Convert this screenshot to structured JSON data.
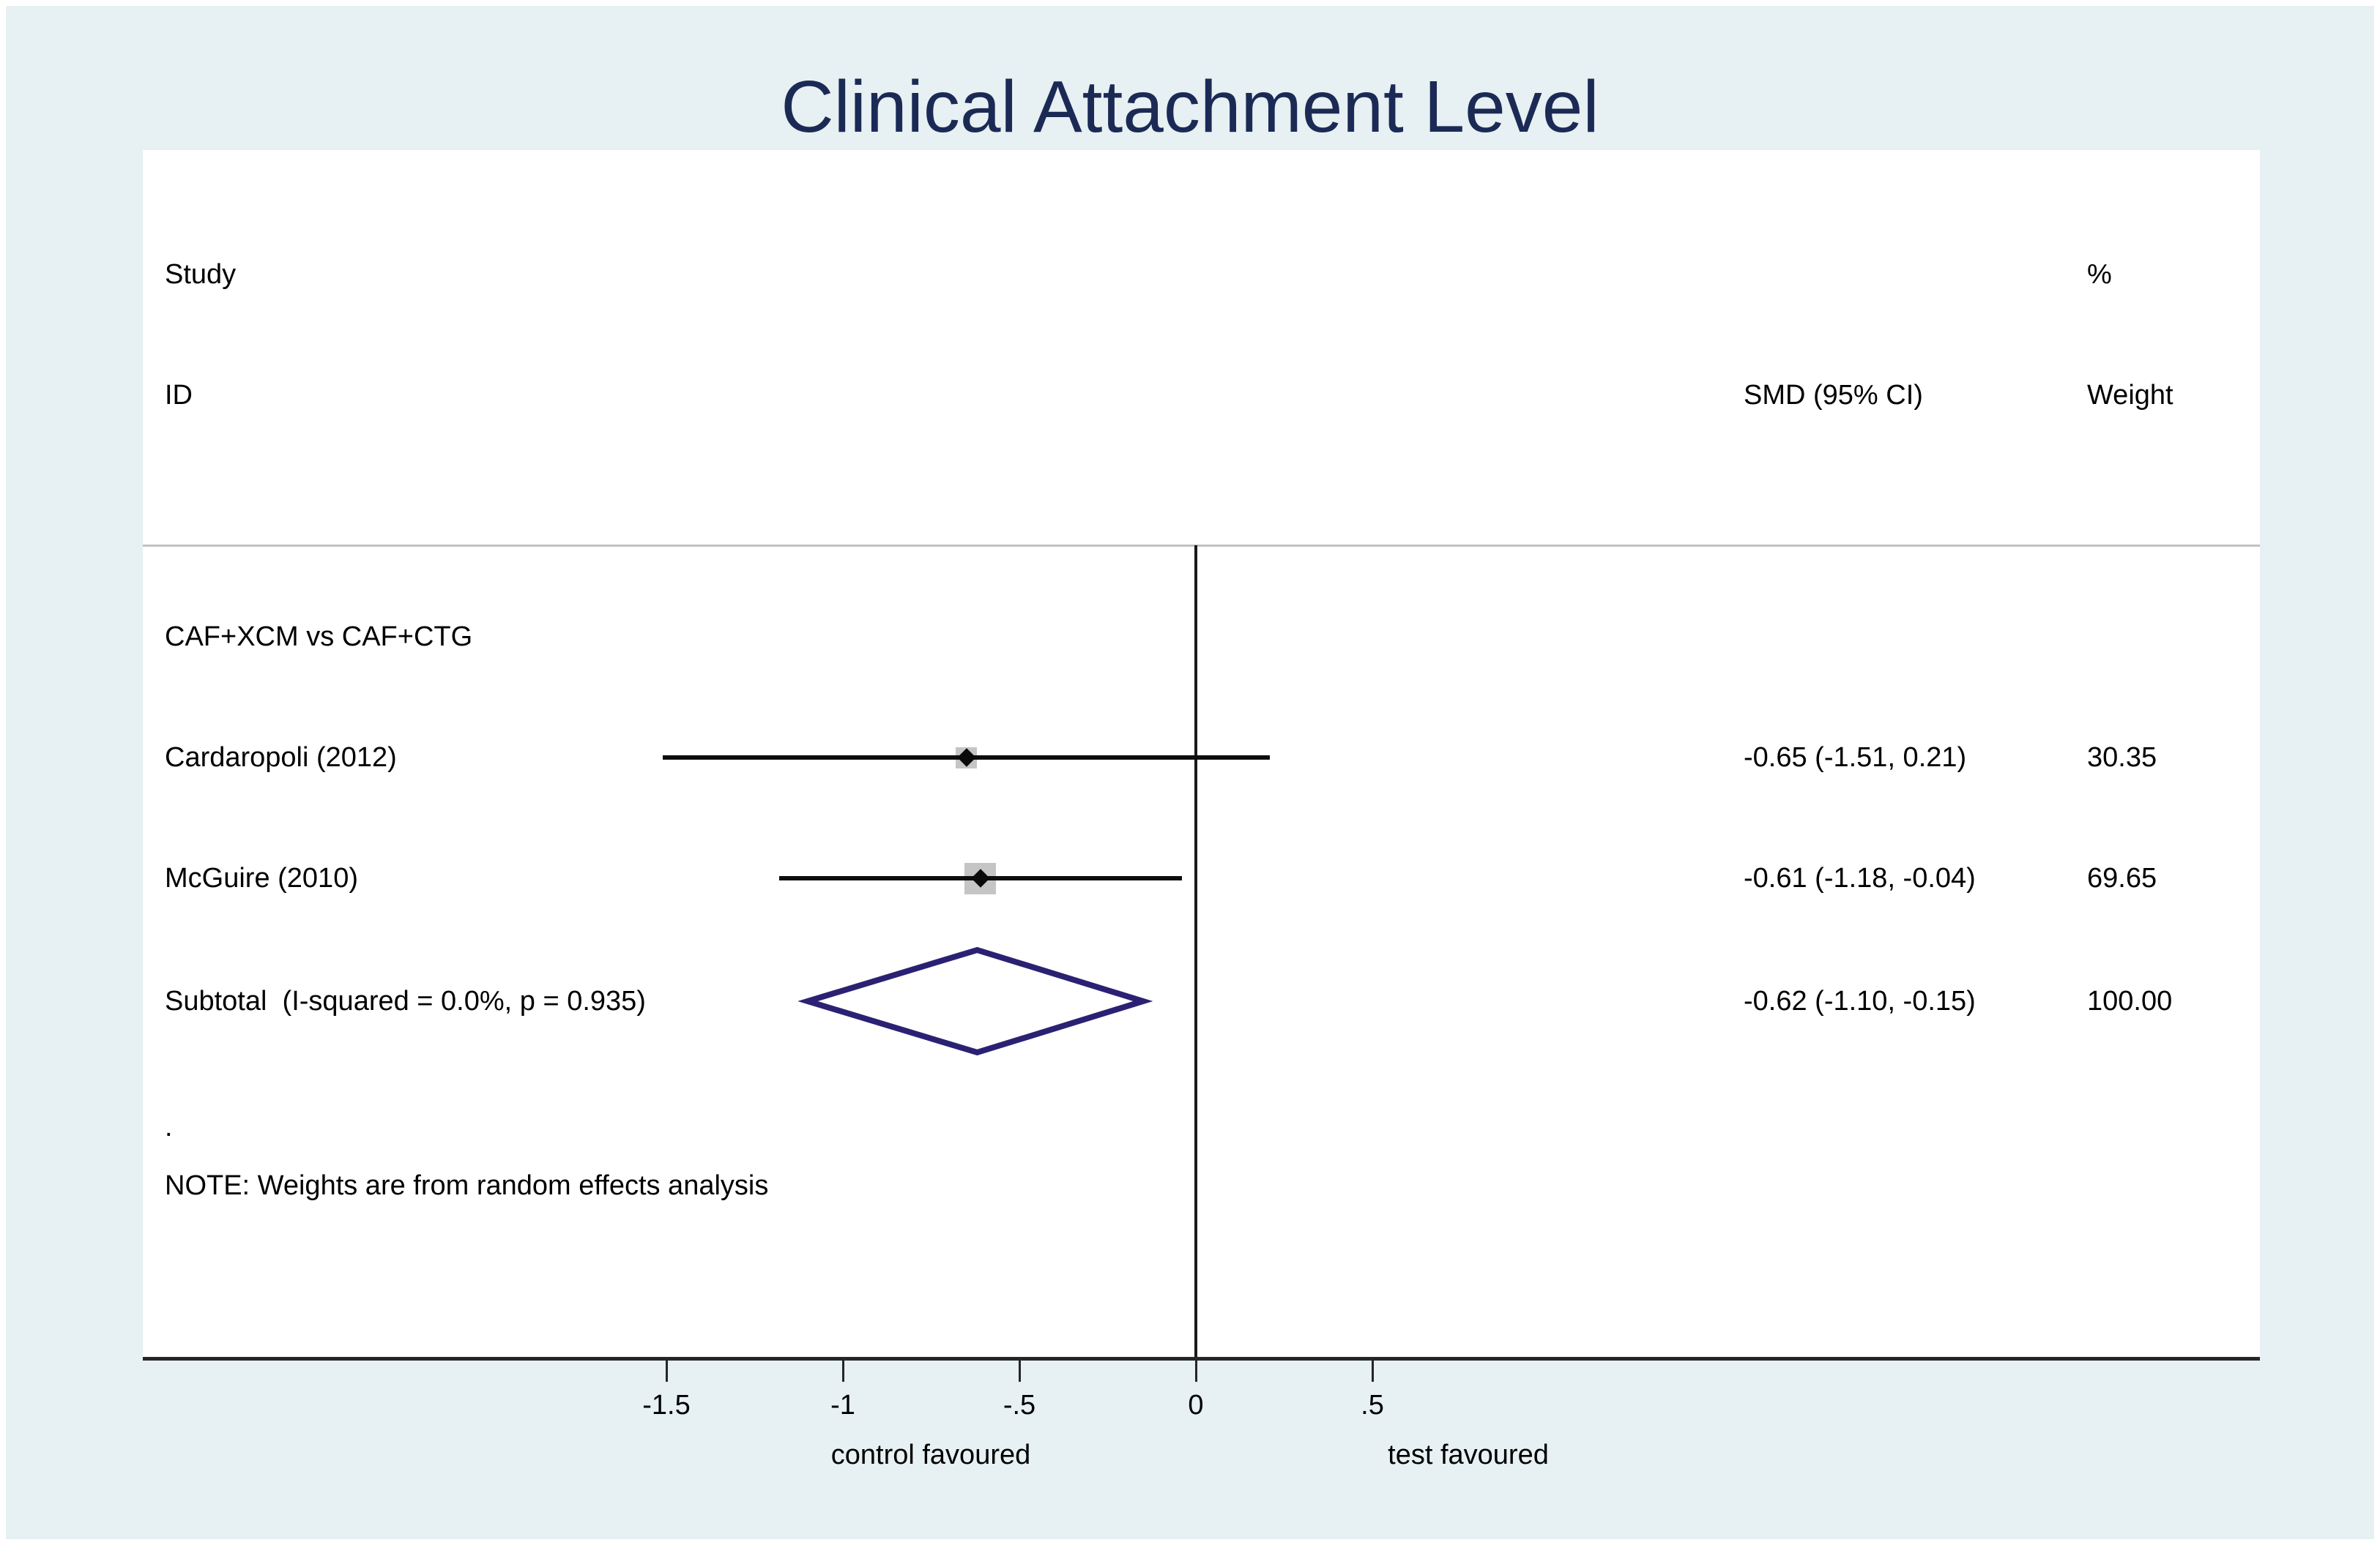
{
  "title": "Clinical Attachment Level",
  "colors": {
    "background": "#e7f0f2",
    "plot_background": "#ffffff",
    "title_text": "#1b2a55",
    "body_text": "#000000",
    "separator_line": "#c2c2c2",
    "axis_line": "#262626",
    "zero_line": "#1a1a1a",
    "ci_line": "#0d0d0d",
    "marker_square": "#c5c5c5",
    "marker_point": "#0a0a0a",
    "diamond_stroke": "#2b2173"
  },
  "header": {
    "study_line1": "Study",
    "study_line2": "ID",
    "percent": "%",
    "smd": "SMD (95% CI)",
    "weight": "Weight"
  },
  "group_label": "CAF+XCM vs CAF+CTG",
  "dot_row": ".",
  "note": "NOTE: Weights are from random effects analysis",
  "axis": {
    "tick_values": [
      -1.5,
      -1,
      -0.5,
      0,
      0.5
    ],
    "tick_labels": [
      "-1.5",
      "-1",
      "-.5",
      "0",
      ".5"
    ],
    "left_label": "control favoured",
    "right_label": "test favoured"
  },
  "chart_data": {
    "type": "forest",
    "title": "Clinical Attachment Level",
    "effect_measure": "SMD",
    "group": "CAF+XCM vs CAF+CTG",
    "zero_line": 0,
    "xticks": [
      -1.5,
      -1,
      -0.5,
      0,
      0.5
    ],
    "studies": [
      {
        "id": "Cardaropoli (2012)",
        "smd": -0.65,
        "ci_low": -1.51,
        "ci_high": 0.21,
        "weight": 30.35,
        "smd_text": "-0.65 (-1.51, 0.21)",
        "weight_text": "30.35"
      },
      {
        "id": "McGuire (2010)",
        "smd": -0.61,
        "ci_low": -1.18,
        "ci_high": -0.04,
        "weight": 69.65,
        "smd_text": "-0.61 (-1.18, -0.04)",
        "weight_text": "69.65"
      }
    ],
    "subtotal": {
      "label": "Subtotal  (I-squared = 0.0%, p = 0.935)",
      "smd": -0.62,
      "ci_low": -1.1,
      "ci_high": -0.15,
      "weight": 100.0,
      "smd_text": "-0.62 (-1.10, -0.15)",
      "weight_text": "100.00"
    },
    "note": "NOTE: Weights are from random effects analysis",
    "x_axis_annotations": {
      "left": "control favoured",
      "right": "test favoured"
    }
  }
}
